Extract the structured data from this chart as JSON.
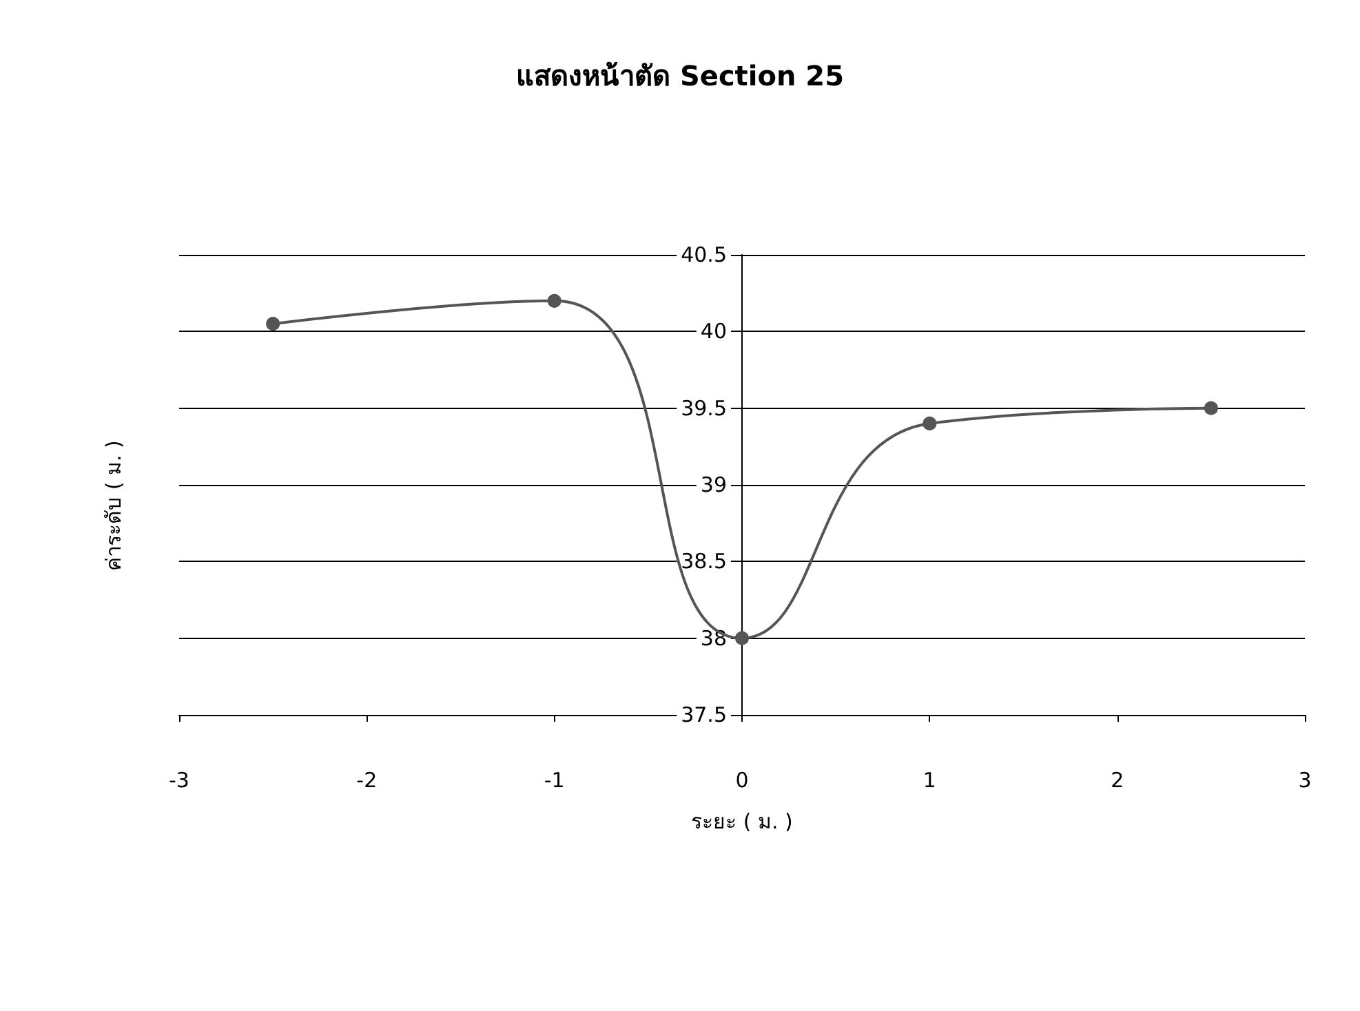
{
  "chart_data": {
    "type": "line",
    "title": "แสดงหน้าตัด Section 25",
    "xlabel": "ระยะ ( ม. )",
    "ylabel": "ค่าระดับ ( ม. )",
    "x": [
      -2.5,
      -1,
      0,
      1,
      2.5
    ],
    "series": [
      {
        "color": "#555555",
        "values": [
          40.05,
          40.2,
          38,
          39.4,
          39.5
        ]
      }
    ],
    "xlim": [
      -3,
      3
    ],
    "xticks": [
      -3,
      -2,
      -1,
      0,
      1,
      2,
      3
    ],
    "ylim": [
      37.5,
      40.5
    ],
    "yticks": [
      37.5,
      38,
      38.5,
      39,
      39.5,
      40,
      40.5
    ],
    "grid": "y",
    "marker": "circle",
    "line_style": "solid"
  }
}
